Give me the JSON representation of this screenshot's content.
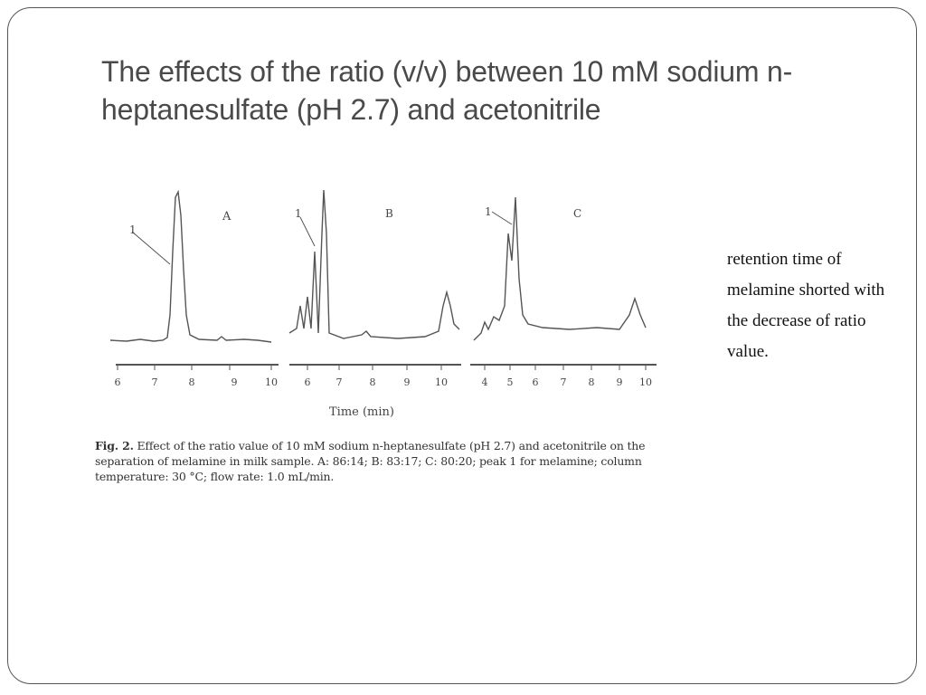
{
  "slide": {
    "title": "The effects of the ratio (v/v) between 10 mM sodium n-heptanesulfate (pH 2.7) and acetonitrile",
    "side_note": "retention time of melamine shorted with the decrease of ratio value."
  },
  "figure": {
    "panels": [
      {
        "label": "A",
        "peak_label": "1",
        "ticks": [
          "6",
          "7",
          "8",
          "9",
          "10"
        ]
      },
      {
        "label": "B",
        "peak_label": "1",
        "ticks": [
          "6",
          "7",
          "8",
          "9",
          "10"
        ]
      },
      {
        "label": "C",
        "peak_label": "1",
        "ticks": [
          "4",
          "5",
          "6",
          "7",
          "8",
          "9",
          "10"
        ]
      }
    ],
    "xlabel": "Time (min)",
    "caption_label": "Fig. 2.",
    "caption_text": "Effect of the ratio value of 10 mM sodium n-heptanesulfate (pH 2.7) and acetonitrile on the separation of melamine in milk sample. A: 86:14; B: 83:17; C: 80:20; peak 1 for melamine; column temperature: 30 °C; flow rate: 1.0 mL/min."
  },
  "colors": {
    "title": "#4a4a4a",
    "frame": "#555555",
    "trace": "#555555"
  }
}
